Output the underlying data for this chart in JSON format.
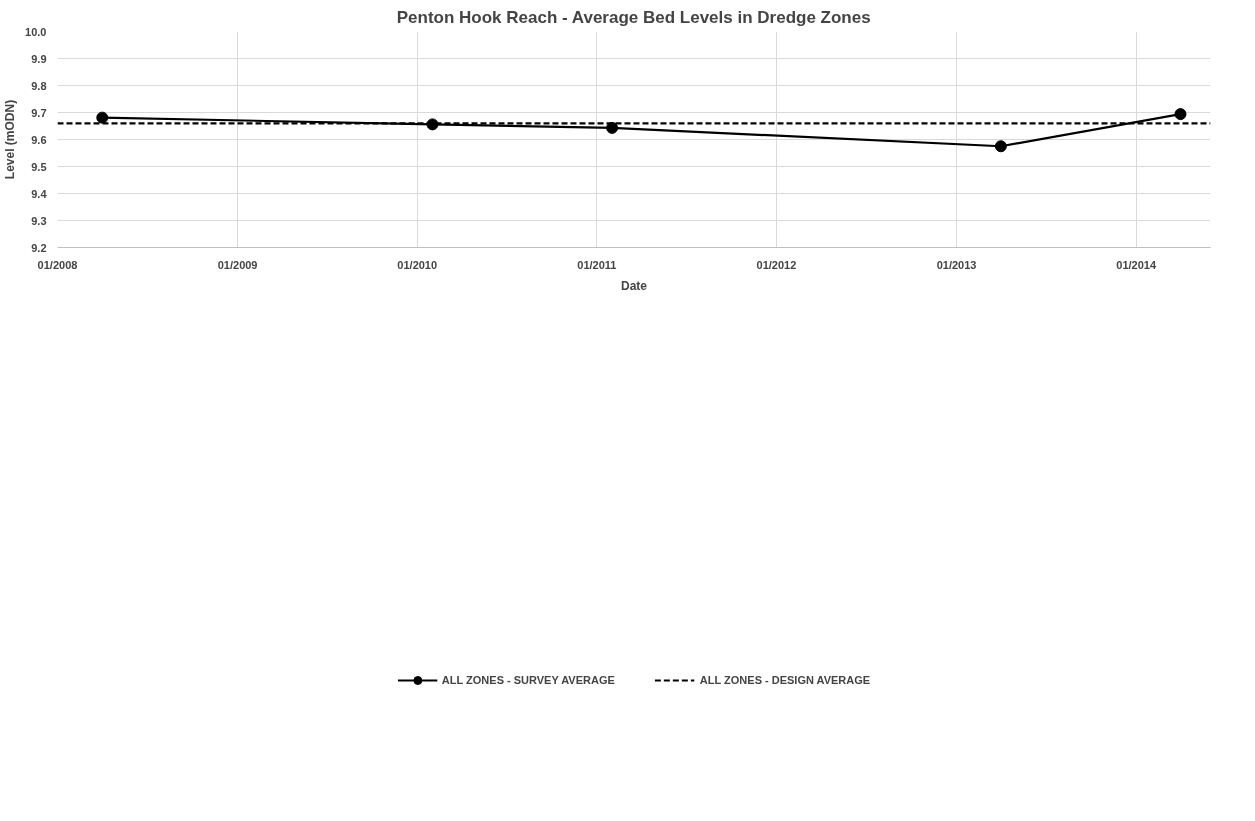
{
  "chart_data": {
    "type": "line",
    "title": "Penton Hook Reach - Average Bed Levels in Dredge Zones",
    "xlabel": "Date",
    "ylabel": "Level (mODN)",
    "series": [
      {
        "name": "ALL ZONES - SURVEY AVERAGE",
        "color": "#000000",
        "marker": "circle",
        "line_style": "solid",
        "x": [
          "2008-04",
          "2010-02",
          "2011-02",
          "2013-04",
          "2014-04"
        ],
        "values": [
          9.681,
          9.656,
          9.643,
          9.575,
          9.694
        ]
      },
      {
        "name": "ALL ZONES - DESIGN AVERAGE",
        "color": "#000000",
        "marker": "none",
        "line_style": "dashed",
        "x": [
          "2008-01",
          "2014-06"
        ],
        "values": [
          9.66,
          9.66
        ]
      }
    ],
    "xlim": [
      "2008-01",
      "2014-06"
    ],
    "xticks": [
      {
        "value": "2008-01",
        "label": "01/2008"
      },
      {
        "value": "2009-01",
        "label": "01/2009"
      },
      {
        "value": "2010-01",
        "label": "01/2010"
      },
      {
        "value": "2011-01",
        "label": "01/2011"
      },
      {
        "value": "2012-01",
        "label": "01/2012"
      },
      {
        "value": "2013-01",
        "label": "01/2013"
      },
      {
        "value": "2014-01",
        "label": "01/2014"
      }
    ],
    "ylim": [
      9.2,
      10.0
    ],
    "yticks": [
      {
        "value": 9.2,
        "label": "9.2"
      },
      {
        "value": 9.3,
        "label": "9.3"
      },
      {
        "value": 9.4,
        "label": "9.4"
      },
      {
        "value": 9.5,
        "label": "9.5"
      },
      {
        "value": 9.6,
        "label": "9.6"
      },
      {
        "value": 9.7,
        "label": "9.7"
      },
      {
        "value": 9.8,
        "label": "9.8"
      },
      {
        "value": 9.9,
        "label": "9.9"
      },
      {
        "value": 10.0,
        "label": "10.0"
      }
    ],
    "grid": true,
    "legend": "bottom"
  }
}
